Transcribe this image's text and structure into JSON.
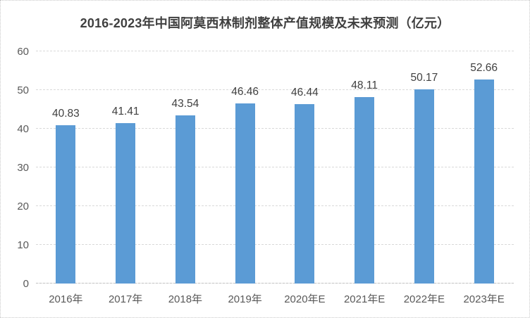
{
  "chart_data": {
    "type": "bar",
    "title": "2016-2023年中国阿莫西林制剂整体产值规模及未来预测（亿元）",
    "categories": [
      "2016年",
      "2017年",
      "2018年",
      "2019年",
      "2020年E",
      "2021年E",
      "2022年E",
      "2023年E"
    ],
    "values": [
      40.83,
      41.41,
      43.54,
      46.46,
      46.44,
      48.11,
      50.17,
      52.66
    ],
    "value_labels": [
      "40.83",
      "41.41",
      "43.54",
      "46.46",
      "46.44",
      "48.11",
      "50.17",
      "52.66"
    ],
    "xlabel": "",
    "ylabel": "",
    "ylim": [
      0,
      60
    ],
    "yticks": [
      0,
      10,
      20,
      30,
      40,
      50,
      60
    ],
    "grid": true,
    "legend": false,
    "colors": {
      "bar": "#5B9BD5",
      "title_text": "#404040",
      "value_label_text": "#404040",
      "axis_tick_text": "#595959",
      "gridline": "#D9D9D9",
      "background": "#FFFFFF"
    }
  }
}
